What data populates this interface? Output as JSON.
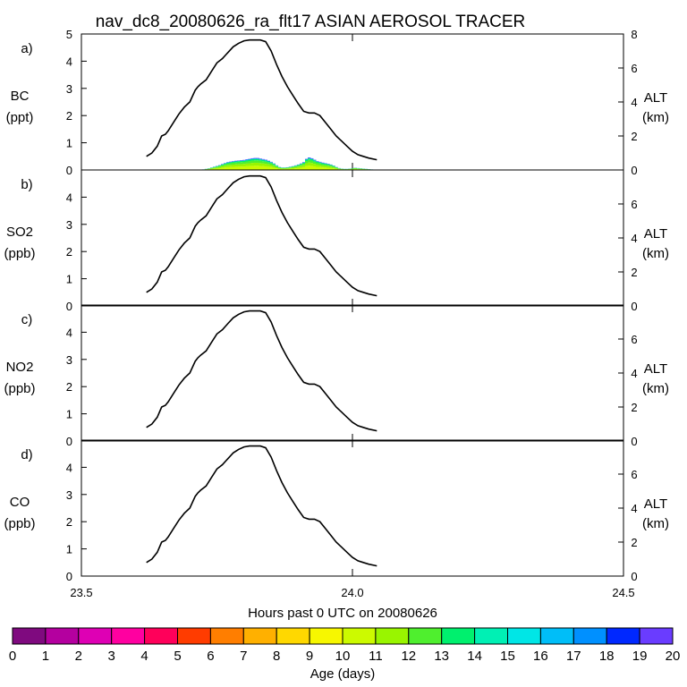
{
  "title": "nav_dc8_20080626_ra_flt17 ASIAN AEROSOL TRACER",
  "colors": {
    "age_palette": [
      "#7f0a7f",
      "#b4009f",
      "#de00b4",
      "#ff00a0",
      "#ff005a",
      "#ff3c00",
      "#ff7e00",
      "#ffb000",
      "#ffd800",
      "#f7f700",
      "#ccfa00",
      "#99f500",
      "#4fef2e",
      "#00f06e",
      "#00f0b4",
      "#00e6e6",
      "#00bef8",
      "#0090ff",
      "#0028ff",
      "#6a3cff"
    ]
  },
  "chart_data": {
    "type": "line",
    "x_axis": {
      "label": "Hours past 0 UTC on 20080626",
      "range": [
        23.5,
        24.5
      ],
      "ticks": [
        "23.5",
        "24.0",
        "24.5"
      ],
      "tick_values": [
        23.5,
        24.0,
        24.5
      ],
      "minor_ticks": [
        24.0
      ]
    },
    "altitude_series": {
      "name": "ALT (km)",
      "x": [
        23.62,
        23.63,
        23.64,
        23.648,
        23.655,
        23.66,
        23.67,
        23.68,
        23.69,
        23.7,
        23.71,
        23.715,
        23.72,
        23.73,
        23.74,
        23.75,
        23.76,
        23.77,
        23.78,
        23.79,
        23.8,
        23.81,
        23.82,
        23.83,
        23.84,
        23.85,
        23.86,
        23.87,
        23.88,
        23.89,
        23.9,
        23.91,
        23.92,
        23.93,
        23.94,
        23.95,
        23.96,
        23.97,
        23.98,
        23.99,
        24.0,
        24.01,
        24.02,
        24.03,
        24.045
      ],
      "y": [
        0.8,
        1.0,
        1.4,
        2.0,
        2.1,
        2.3,
        2.8,
        3.3,
        3.7,
        4.0,
        4.7,
        4.9,
        5.05,
        5.3,
        5.8,
        6.3,
        6.55,
        6.9,
        7.25,
        7.45,
        7.6,
        7.65,
        7.65,
        7.65,
        7.55,
        7.0,
        6.2,
        5.5,
        4.9,
        4.4,
        3.9,
        3.45,
        3.35,
        3.35,
        3.2,
        2.8,
        2.4,
        2.0,
        1.7,
        1.4,
        1.1,
        0.9,
        0.8,
        0.7,
        0.6
      ]
    },
    "panels": [
      {
        "id": "a)",
        "species_label": "BC",
        "species_unit": "(ppt)",
        "y_left": {
          "range": [
            0,
            5
          ],
          "ticks": [
            "0",
            "1",
            "2",
            "3",
            "4",
            "5"
          ],
          "tick_values": [
            0,
            1,
            2,
            3,
            4,
            5
          ]
        },
        "y_right": {
          "label": "ALT",
          "unit": "(km)",
          "range": [
            0,
            8
          ],
          "ticks": [
            "0",
            "2",
            "4",
            "6",
            "8"
          ],
          "tick_values": [
            0,
            2,
            4,
            6,
            8
          ]
        },
        "stacked_series": {
          "x": [
            23.72,
            23.725,
            23.73,
            23.735,
            23.74,
            23.745,
            23.75,
            23.755,
            23.76,
            23.765,
            23.77,
            23.775,
            23.78,
            23.785,
            23.79,
            23.795,
            23.8,
            23.805,
            23.81,
            23.815,
            23.82,
            23.825,
            23.83,
            23.835,
            23.84,
            23.845,
            23.85,
            23.855,
            23.86,
            23.865,
            23.87,
            23.875,
            23.88,
            23.885,
            23.89,
            23.895,
            23.9,
            23.905,
            23.91,
            23.915,
            23.92,
            23.925,
            23.93,
            23.935,
            23.94,
            23.945,
            23.95,
            23.955,
            23.96,
            23.965,
            23.97,
            23.975,
            23.98,
            23.985,
            23.99,
            23.995,
            24.0,
            24.005,
            24.01,
            24.015,
            24.02,
            24.025,
            24.03,
            24.035,
            24.04
          ],
          "total": [
            0.01,
            0.02,
            0.04,
            0.06,
            0.09,
            0.12,
            0.15,
            0.18,
            0.22,
            0.26,
            0.29,
            0.31,
            0.33,
            0.34,
            0.35,
            0.36,
            0.37,
            0.39,
            0.41,
            0.43,
            0.44,
            0.44,
            0.42,
            0.4,
            0.38,
            0.34,
            0.3,
            0.24,
            0.17,
            0.11,
            0.09,
            0.09,
            0.1,
            0.12,
            0.14,
            0.17,
            0.2,
            0.24,
            0.29,
            0.41,
            0.46,
            0.43,
            0.38,
            0.33,
            0.3,
            0.27,
            0.25,
            0.23,
            0.2,
            0.16,
            0.11,
            0.07,
            0.05,
            0.04,
            0.04,
            0.05,
            0.07,
            0.08,
            0.07,
            0.06,
            0.05,
            0.04,
            0.03,
            0.02,
            0.01
          ],
          "bands": [
            {
              "age_bin": 10,
              "fraction": 0.35
            },
            {
              "age_bin": 11,
              "fraction": 0.25
            },
            {
              "age_bin": 12,
              "fraction": 0.2
            },
            {
              "age_bin": 13,
              "fraction": 0.12
            },
            {
              "age_bin": 17,
              "fraction": 0.05
            },
            {
              "age_bin": 19,
              "fraction": 0.03
            }
          ]
        }
      },
      {
        "id": "b)",
        "species_label": "SO2",
        "species_unit": "(ppb)",
        "y_left": {
          "range": [
            0,
            5
          ],
          "ticks": [
            "0",
            "1",
            "2",
            "3",
            "4"
          ],
          "tick_values": [
            0,
            1,
            2,
            3,
            4
          ]
        },
        "y_right": {
          "label": "ALT",
          "unit": "(km)",
          "range": [
            0,
            8
          ],
          "ticks": [
            "0",
            "2",
            "4",
            "6"
          ],
          "tick_values": [
            0,
            2,
            4,
            6
          ]
        }
      },
      {
        "id": "c)",
        "species_label": "NO2",
        "species_unit": "(ppb)",
        "y_left": {
          "range": [
            0,
            5
          ],
          "ticks": [
            "0",
            "1",
            "2",
            "3",
            "4"
          ],
          "tick_values": [
            0,
            1,
            2,
            3,
            4
          ]
        },
        "y_right": {
          "label": "ALT",
          "unit": "(km)",
          "range": [
            0,
            8
          ],
          "ticks": [
            "0",
            "2",
            "4",
            "6"
          ],
          "tick_values": [
            0,
            2,
            4,
            6
          ]
        }
      },
      {
        "id": "d)",
        "species_label": "CO",
        "species_unit": "(ppb)",
        "y_left": {
          "range": [
            0,
            5
          ],
          "ticks": [
            "0",
            "1",
            "2",
            "3",
            "4"
          ],
          "tick_values": [
            0,
            1,
            2,
            3,
            4
          ]
        },
        "y_right": {
          "label": "ALT",
          "unit": "(km)",
          "range": [
            0,
            8
          ],
          "ticks": [
            "0",
            "2",
            "4",
            "6"
          ],
          "tick_values": [
            0,
            2,
            4,
            6
          ]
        }
      }
    ],
    "colorbar": {
      "label": "Age (days)",
      "ticks": [
        "0",
        "1",
        "2",
        "3",
        "4",
        "5",
        "6",
        "7",
        "8",
        "9",
        "10",
        "11",
        "12",
        "13",
        "14",
        "15",
        "16",
        "17",
        "18",
        "19",
        "20"
      ],
      "range": [
        0,
        20
      ]
    }
  }
}
